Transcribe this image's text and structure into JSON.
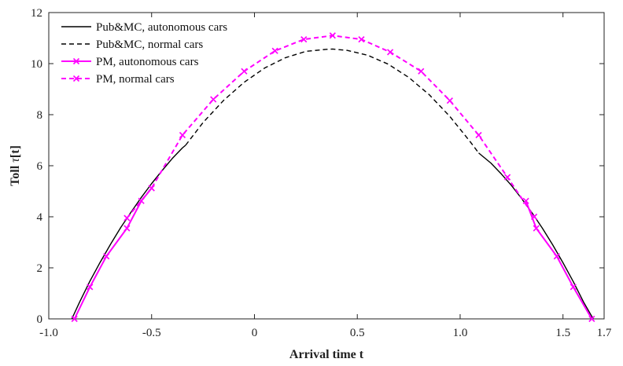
{
  "chart_data": {
    "type": "line",
    "title": "",
    "xlabel": "Arrival time t",
    "ylabel_prefix": "Toll ",
    "ylabel_symbol": "τ",
    "ylabel_suffix": "[t]",
    "xlim": [
      -1.0,
      1.7
    ],
    "ylim": [
      0,
      12
    ],
    "xticks": [
      -1.0,
      -0.5,
      0,
      0.5,
      1.0,
      1.5,
      1.7
    ],
    "xtick_labels": [
      "-1.0",
      "-0.5",
      "0",
      "0.5",
      "1.0",
      "1.5",
      "1.7"
    ],
    "yticks": [
      0,
      2,
      4,
      6,
      8,
      10,
      12
    ],
    "ytick_labels": [
      "0",
      "2",
      "4",
      "6",
      "8",
      "10",
      "12"
    ],
    "grid": false,
    "legend_position": "top-left",
    "series": [
      {
        "name": "Pub&MC, autonomous cars",
        "color": "#000000",
        "style": "solid",
        "marker": "none",
        "x": [
          -0.888,
          -0.85,
          -0.8,
          -0.75,
          -0.7,
          -0.65,
          -0.6,
          -0.55,
          -0.5,
          -0.45,
          -0.4,
          -0.35,
          -0.335
        ],
        "y": [
          0.0,
          0.66,
          1.48,
          2.22,
          2.92,
          3.58,
          4.18,
          4.76,
          5.3,
          5.8,
          6.28,
          6.7,
          6.8
        ]
      },
      {
        "name": "Pub&MC, normal cars",
        "color": "#000000",
        "style": "dashed",
        "marker": "none",
        "x": [
          -0.335,
          -0.25,
          -0.15,
          -0.05,
          0.05,
          0.15,
          0.25,
          0.35,
          0.38,
          0.45,
          0.55,
          0.65,
          0.75,
          0.85,
          0.95,
          1.05,
          1.09
        ],
        "y": [
          6.8,
          7.69,
          8.56,
          9.27,
          9.83,
          10.23,
          10.48,
          10.56,
          10.57,
          10.52,
          10.33,
          9.98,
          9.46,
          8.78,
          7.93,
          6.93,
          6.5
        ]
      },
      {
        "name": "Pub&MC, autonomous cars (late)",
        "legend": false,
        "color": "#000000",
        "style": "solid",
        "marker": "none",
        "x": [
          1.09,
          1.15,
          1.2,
          1.25,
          1.3,
          1.35,
          1.4,
          1.45,
          1.5,
          1.55,
          1.6,
          1.647
        ],
        "y": [
          6.5,
          6.1,
          5.68,
          5.22,
          4.7,
          4.15,
          3.55,
          2.9,
          2.2,
          1.46,
          0.66,
          0.0
        ]
      },
      {
        "name": "PM, autonomous cars",
        "color": "#ff00ff",
        "style": "solid",
        "marker": "x",
        "x": [
          -0.875,
          -0.8,
          -0.72,
          -0.62,
          -0.55,
          -0.5
        ],
        "y": [
          0.0,
          1.25,
          2.45,
          3.55,
          4.62,
          5.12
        ]
      },
      {
        "name": "PM, normal cars",
        "color": "#ff00ff",
        "style": "dashed",
        "marker": "x",
        "x": [
          -0.62,
          -0.5,
          -0.35,
          -0.2,
          -0.05,
          0.1,
          0.24,
          0.38,
          0.52,
          0.66,
          0.81,
          0.95,
          1.09,
          1.23,
          1.36
        ],
        "y": [
          3.95,
          5.12,
          7.2,
          8.6,
          9.7,
          10.5,
          10.95,
          11.1,
          10.95,
          10.45,
          9.7,
          8.55,
          7.2,
          5.55,
          4.0
        ]
      },
      {
        "name": "PM, autonomous cars (late)",
        "legend": false,
        "color": "#ff00ff",
        "style": "solid",
        "marker": "x",
        "x": [
          1.32,
          1.37,
          1.47,
          1.55,
          1.64
        ],
        "y": [
          4.62,
          3.55,
          2.45,
          1.25,
          0.0
        ]
      }
    ]
  }
}
